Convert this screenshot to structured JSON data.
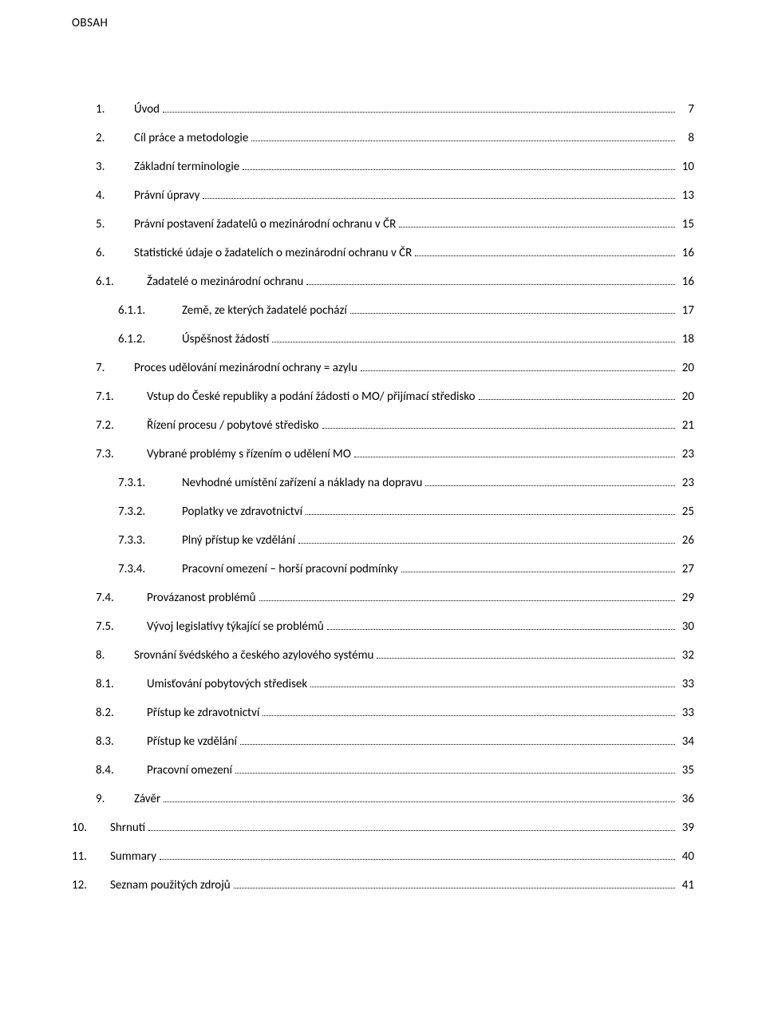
{
  "heading": "OBSAH",
  "toc": [
    {
      "level": 1,
      "num": "1.",
      "title": "Úvod",
      "page": "7"
    },
    {
      "level": 1,
      "num": "2.",
      "title": "Cíl práce a metodologie",
      "page": "8"
    },
    {
      "level": 1,
      "num": "3.",
      "title": "Základní terminologie",
      "page": "10"
    },
    {
      "level": 1,
      "num": "4.",
      "title": "Právní úpravy",
      "page": "13"
    },
    {
      "level": 1,
      "num": "5.",
      "title": "Právní postavení žadatelů o mezinárodní ochranu v ČR",
      "page": "15"
    },
    {
      "level": 1,
      "num": "6.",
      "title": "Statistické údaje o žadatelích o mezinárodní ochranu v ČR",
      "page": "16"
    },
    {
      "level": 2,
      "num": "6.1.",
      "title": "Žadatelé o mezinárodní ochranu",
      "page": "16"
    },
    {
      "level": 3,
      "num": "6.1.1.",
      "title": "Země, ze kterých žadatelé pochází",
      "page": "17"
    },
    {
      "level": 3,
      "num": "6.1.2.",
      "title": "Úspěšnost žádostí",
      "page": "18"
    },
    {
      "level": 1,
      "num": "7.",
      "title": "Proces udělování mezinárodní ochrany = azylu",
      "page": "20"
    },
    {
      "level": 2,
      "num": "7.1.",
      "title": "Vstup do České republiky a podání žádosti o MO/ přijímací středisko",
      "page": "20"
    },
    {
      "level": 2,
      "num": "7.2.",
      "title": "Řízení procesu / pobytové středisko",
      "page": "21"
    },
    {
      "level": 2,
      "num": "7.3.",
      "title": "Vybrané problémy s řízením o udělení MO",
      "page": "23"
    },
    {
      "level": 3,
      "num": "7.3.1.",
      "title": "Nevhodné umístění zařízení a náklady na dopravu",
      "page": "23"
    },
    {
      "level": 3,
      "num": "7.3.2.",
      "title": "Poplatky ve zdravotnictví",
      "page": "25"
    },
    {
      "level": 3,
      "num": "7.3.3.",
      "title": "Plný přístup ke vzdělání",
      "page": "26"
    },
    {
      "level": 3,
      "num": "7.3.4.",
      "title": "Pracovní omezení – horší pracovní podmínky",
      "page": "27"
    },
    {
      "level": 2,
      "num": "7.4.",
      "title": "Provázanost problémů",
      "page": "29"
    },
    {
      "level": 2,
      "num": "7.5.",
      "title": "Vývoj legislativy týkající se problémů",
      "page": "30"
    },
    {
      "level": 1,
      "num": "8.",
      "title": "Srovnání švédského a českého azylového systému",
      "page": "32"
    },
    {
      "level": 2,
      "num": "8.1.",
      "title": "Umisťování pobytových středisek",
      "page": "33"
    },
    {
      "level": 2,
      "num": "8.2.",
      "title": "Přístup ke zdravotnictví",
      "page": "33"
    },
    {
      "level": 2,
      "num": "8.3.",
      "title": "Přístup ke vzdělání",
      "page": "34"
    },
    {
      "level": 2,
      "num": "8.4.",
      "title": "Pracovní omezení",
      "page": "35"
    },
    {
      "level": 1,
      "num": "9.",
      "title": "Závěr",
      "page": "36"
    },
    {
      "level": 0,
      "num": "10.",
      "title": "Shrnutí",
      "page": "39"
    },
    {
      "level": 0,
      "num": "11.",
      "title": "Summary",
      "page": "40"
    },
    {
      "level": 0,
      "num": "12.",
      "title": "Seznam použitých zdrojů",
      "page": "41"
    }
  ]
}
